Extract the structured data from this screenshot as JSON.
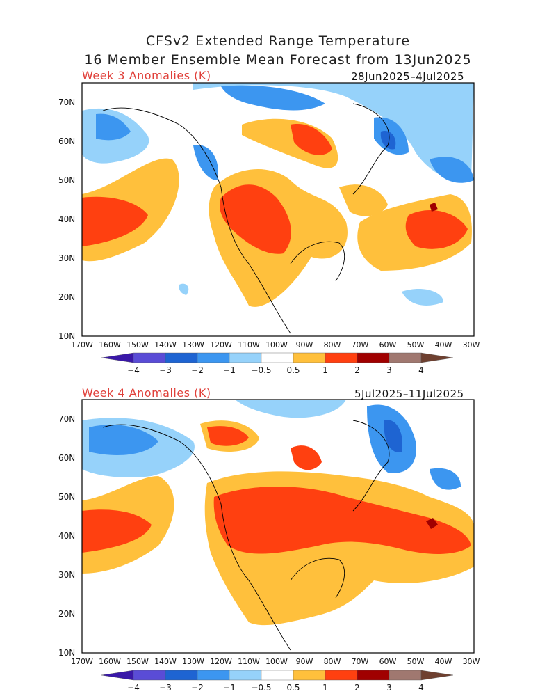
{
  "header": {
    "title_line1": "CFSv2 Extended Range Temperature",
    "title_line2": "16 Member Ensemble Mean Forecast from 13Jun2025"
  },
  "panels": [
    {
      "label": "Week 3 Anomalies (K)",
      "date_range": "28Jun2025–4Jul2025"
    },
    {
      "label": "Week 4 Anomalies (K)",
      "date_range": "5Jul2025–11Jul2025"
    }
  ],
  "axes": {
    "lat_labels": [
      "70N",
      "60N",
      "50N",
      "40N",
      "30N",
      "20N",
      "10N"
    ],
    "lon_labels": [
      "170W",
      "160W",
      "150W",
      "140W",
      "130W",
      "120W",
      "110W",
      "100W",
      "90W",
      "80W",
      "70W",
      "60W",
      "50W",
      "40W",
      "30W"
    ]
  },
  "colorbar": {
    "labels": [
      "−4",
      "−3",
      "−2",
      "−1",
      "−0.5",
      "0.5",
      "1",
      "2",
      "3",
      "4"
    ],
    "colors": [
      "#3a18a8",
      "#5a4cd6",
      "#1e64d2",
      "#3c96f0",
      "#96d2fa",
      "#ffffff",
      "#ffc03c",
      "#ff4010",
      "#a00000",
      "#a07870",
      "#6e4030"
    ]
  },
  "colors": {
    "warm_light": "#ffc03c",
    "warm": "#ff4010",
    "warm_dark": "#a00000",
    "cool_light": "#96d2fa",
    "cool": "#3c96f0",
    "cool_mid": "#1e64d2",
    "cool_dark": "#3a18a8",
    "label_red": "#e0403a"
  }
}
